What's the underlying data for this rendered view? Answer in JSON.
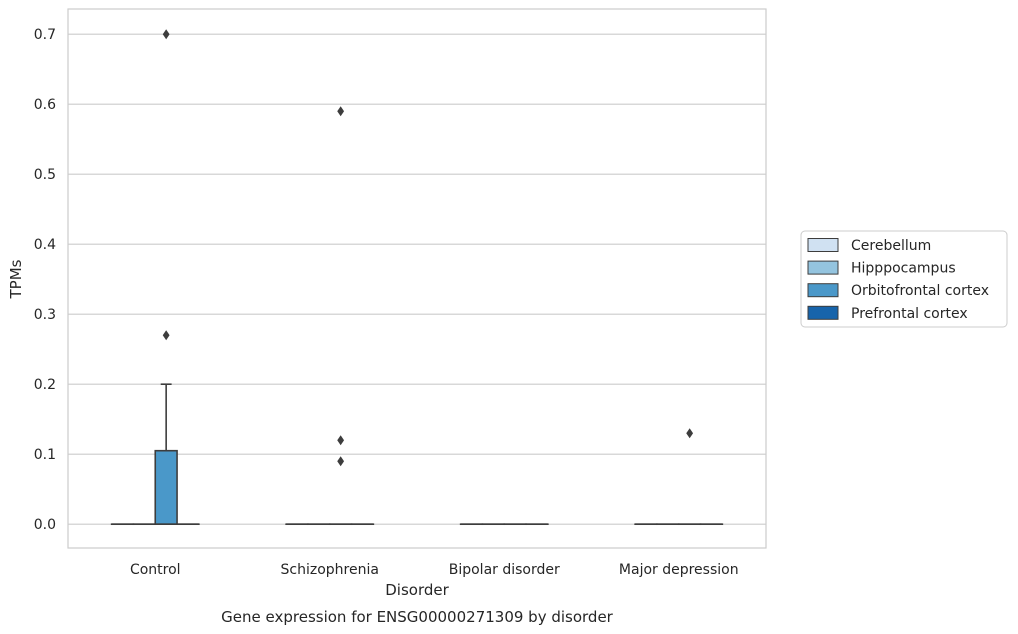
{
  "chart_data": {
    "type": "box",
    "title": "",
    "caption": "Gene expression for ENSG00000271309 by disorder",
    "xlabel": "Disorder",
    "ylabel": "TPMs",
    "ylim": [
      -0.034,
      0.736
    ],
    "yticks": [
      "0.0",
      "0.1",
      "0.2",
      "0.3",
      "0.4",
      "0.5",
      "0.6",
      "0.7"
    ],
    "categories": [
      "Control",
      "Schizophrenia",
      "Bipolar disorder",
      "Major depression"
    ],
    "grid": "horizontal",
    "legend_position": "right",
    "series": [
      {
        "name": "Cerebellum",
        "color": "#d0e1f2",
        "boxes": [
          {
            "category": "Control",
            "q1": 0,
            "median": 0,
            "q3": 0,
            "whisker_low": 0,
            "whisker_high": 0,
            "outliers": []
          },
          {
            "category": "Schizophrenia",
            "q1": 0,
            "median": 0,
            "q3": 0,
            "whisker_low": 0,
            "whisker_high": 0,
            "outliers": []
          },
          {
            "category": "Bipolar disorder",
            "q1": 0,
            "median": 0,
            "q3": 0,
            "whisker_low": 0,
            "whisker_high": 0,
            "outliers": []
          },
          {
            "category": "Major depression",
            "q1": 0,
            "median": 0,
            "q3": 0,
            "whisker_low": 0,
            "whisker_high": 0,
            "outliers": []
          }
        ]
      },
      {
        "name": "Hipppocampus",
        "color": "#94c4df",
        "boxes": [
          {
            "category": "Control",
            "q1": 0,
            "median": 0,
            "q3": 0,
            "whisker_low": 0,
            "whisker_high": 0,
            "outliers": []
          },
          {
            "category": "Schizophrenia",
            "q1": 0,
            "median": 0,
            "q3": 0,
            "whisker_low": 0,
            "whisker_high": 0,
            "outliers": []
          },
          {
            "category": "Bipolar disorder",
            "q1": 0,
            "median": 0,
            "q3": 0,
            "whisker_low": 0,
            "whisker_high": 0,
            "outliers": []
          },
          {
            "category": "Major depression",
            "q1": 0,
            "median": 0,
            "q3": 0,
            "whisker_low": 0,
            "whisker_high": 0,
            "outliers": []
          }
        ]
      },
      {
        "name": "Orbitofrontal cortex",
        "color": "#4a98c9",
        "boxes": [
          {
            "category": "Control",
            "q1": 0,
            "median": 0,
            "q3": 0.105,
            "whisker_low": 0,
            "whisker_high": 0.2,
            "outliers": [
              0.27,
              0.7
            ]
          },
          {
            "category": "Schizophrenia",
            "q1": 0,
            "median": 0,
            "q3": 0,
            "whisker_low": 0,
            "whisker_high": 0,
            "outliers": [
              0.09,
              0.12,
              0.59
            ]
          },
          {
            "category": "Bipolar disorder",
            "q1": 0,
            "median": 0,
            "q3": 0,
            "whisker_low": 0,
            "whisker_high": 0,
            "outliers": []
          },
          {
            "category": "Major depression",
            "q1": 0,
            "median": 0,
            "q3": 0,
            "whisker_low": 0,
            "whisker_high": 0,
            "outliers": [
              0.13
            ]
          }
        ]
      },
      {
        "name": "Prefrontal cortex",
        "color": "#1764ab",
        "boxes": [
          {
            "category": "Control",
            "q1": 0,
            "median": 0,
            "q3": 0,
            "whisker_low": 0,
            "whisker_high": 0,
            "outliers": []
          },
          {
            "category": "Schizophrenia",
            "q1": 0,
            "median": 0,
            "q3": 0,
            "whisker_low": 0,
            "whisker_high": 0,
            "outliers": []
          },
          {
            "category": "Bipolar disorder",
            "q1": 0,
            "median": 0,
            "q3": 0,
            "whisker_low": 0,
            "whisker_high": 0,
            "outliers": []
          },
          {
            "category": "Major depression",
            "q1": 0,
            "median": 0,
            "q3": 0,
            "whisker_low": 0,
            "whisker_high": 0,
            "outliers": []
          }
        ]
      }
    ],
    "colors": {
      "grid": "#cccccc",
      "frame": "#cccccc",
      "box_edge": "#3d3d3d",
      "outlier": "#3d3d3d"
    }
  }
}
